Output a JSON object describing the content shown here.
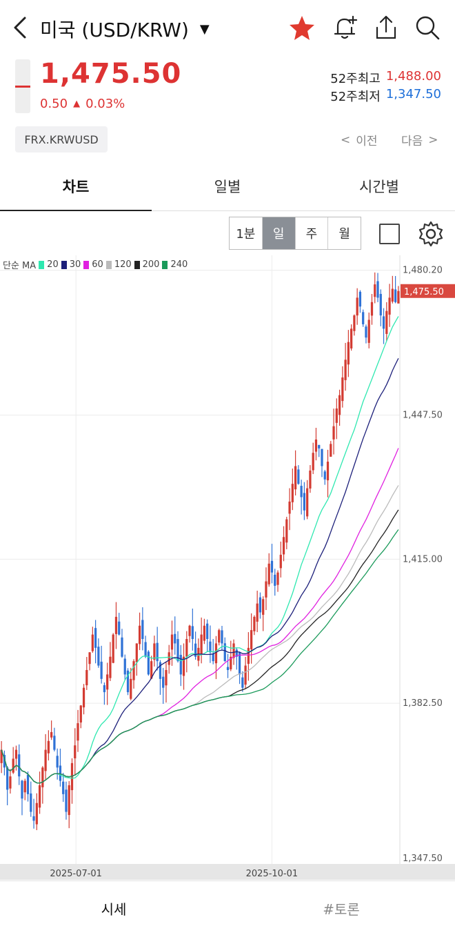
{
  "header": {
    "title": "미국 (USD/KRW)",
    "caret": "▼"
  },
  "quote": {
    "price": "1,475.50",
    "change": "0.50",
    "change_arrow": "▲",
    "change_pct": "0.03%",
    "high52_label": "52주최고",
    "high52_value": "1,488.00",
    "low52_label": "52주최저",
    "low52_value": "1,347.50",
    "code": "FRX.KRWUSD",
    "prev_label": "이전",
    "next_label": "다음",
    "prev_arrow": "<",
    "next_arrow": ">"
  },
  "tabs": [
    "차트",
    "일별",
    "시간별"
  ],
  "periods": [
    "1분",
    "일",
    "주",
    "월"
  ],
  "legend": {
    "prefix": "단순 MA",
    "items": [
      {
        "label": "20",
        "color": "#2ee8b0"
      },
      {
        "label": "30",
        "color": "#1c1f7a"
      },
      {
        "label": "60",
        "color": "#e020e0"
      },
      {
        "label": "120",
        "color": "#bbbbbb"
      },
      {
        "label": "200",
        "color": "#222222"
      },
      {
        "label": "240",
        "color": "#1a9a5a"
      }
    ]
  },
  "bottom_tabs": [
    "시세",
    "#토론"
  ],
  "colors": {
    "up": "#d33b32",
    "down": "#2f72d6",
    "accent_red": "#dd3333",
    "accent_blue": "#1e6fd9"
  },
  "chart_data": {
    "type": "candlestick",
    "price_labels": [
      "1,480.20",
      "1,447.50",
      "1,415.00",
      "1,382.50",
      "1,347.50"
    ],
    "current_price_label": "1,475.50",
    "x_labels": [
      "2025-07-01",
      "2025-10-01"
    ],
    "ylim": [
      1347.5,
      1482
    ],
    "grid": true,
    "closes": [
      1372,
      1368,
      1363,
      1366,
      1370,
      1372,
      1366,
      1361,
      1365,
      1362,
      1358,
      1356,
      1360,
      1364,
      1368,
      1372,
      1374,
      1376,
      1372,
      1368,
      1365,
      1362,
      1358,
      1364,
      1369,
      1373,
      1378,
      1382,
      1386,
      1390,
      1394,
      1398,
      1395,
      1391,
      1388,
      1385,
      1389,
      1393,
      1398,
      1402,
      1398,
      1393,
      1389,
      1385,
      1388,
      1392,
      1396,
      1400,
      1397,
      1393,
      1389,
      1392,
      1396,
      1392,
      1388,
      1386,
      1390,
      1394,
      1398,
      1396,
      1392,
      1389,
      1393,
      1397,
      1400,
      1397,
      1393,
      1395,
      1398,
      1400,
      1397,
      1394,
      1392,
      1396,
      1399,
      1396,
      1392,
      1390,
      1393,
      1396,
      1393,
      1389,
      1386,
      1391,
      1395,
      1399,
      1402,
      1405,
      1403,
      1406,
      1410,
      1414,
      1412,
      1409,
      1412,
      1416,
      1420,
      1424,
      1428,
      1432,
      1436,
      1432,
      1429,
      1426,
      1431,
      1435,
      1439,
      1442,
      1440,
      1436,
      1433,
      1437,
      1441,
      1445,
      1449,
      1452,
      1456,
      1460,
      1464,
      1467,
      1470,
      1474,
      1472,
      1468,
      1465,
      1469,
      1473,
      1477,
      1474,
      1470,
      1467,
      1471,
      1474,
      1476,
      1473,
      1475.5
    ]
  }
}
